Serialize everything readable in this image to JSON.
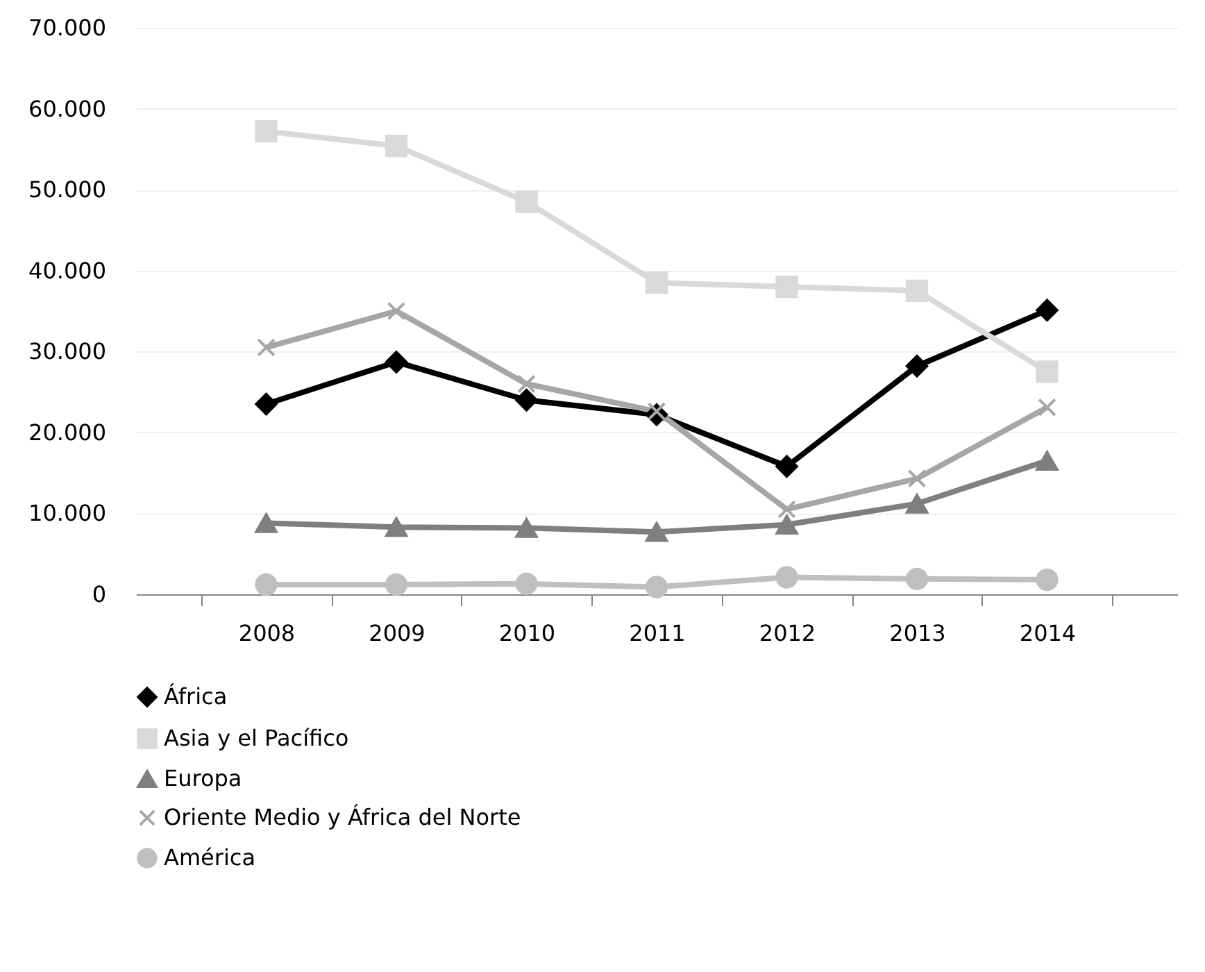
{
  "chart_data": {
    "type": "line",
    "categories": [
      "2008",
      "2009",
      "2010",
      "2011",
      "2012",
      "2013",
      "2014"
    ],
    "ylim": [
      0,
      70000
    ],
    "yticks": [
      {
        "value": 0,
        "label": "0"
      },
      {
        "value": 10000,
        "label": "10.000"
      },
      {
        "value": 20000,
        "label": "20.000"
      },
      {
        "value": 30000,
        "label": "30.000"
      },
      {
        "value": 40000,
        "label": "40.000"
      },
      {
        "value": 50000,
        "label": "50.000"
      },
      {
        "value": 60000,
        "label": "60.000"
      },
      {
        "value": 70000,
        "label": "70.000"
      }
    ],
    "grid": "y",
    "legend": "bottom",
    "line_style": "solid",
    "series": [
      {
        "name": "África",
        "color": "#000000",
        "marker": "diamond",
        "values": [
          23500,
          28700,
          24000,
          22200,
          15800,
          28200,
          35100
        ]
      },
      {
        "name": "Asia y el Pacífico",
        "color": "#d9d9d9",
        "marker": "square",
        "values": [
          57200,
          55400,
          48500,
          38500,
          38000,
          37500,
          27500
        ]
      },
      {
        "name": "Europa",
        "color": "#7f7f7f",
        "marker": "triangle",
        "values": [
          8800,
          8300,
          8200,
          7700,
          8600,
          11200,
          16500
        ]
      },
      {
        "name": "Oriente Medio y África del Norte",
        "color": "#a6a6a6",
        "marker": "cross",
        "values": [
          30500,
          35000,
          26000,
          22600,
          10500,
          14300,
          23100
        ]
      },
      {
        "name": "América",
        "color": "#bfbfbf",
        "marker": "circle",
        "values": [
          1200,
          1200,
          1300,
          900,
          2100,
          1900,
          1800
        ]
      }
    ]
  }
}
